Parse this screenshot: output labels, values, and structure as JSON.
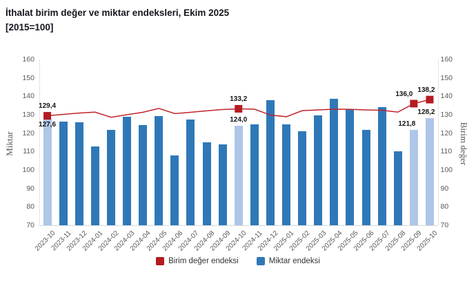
{
  "title": {
    "line1": "İthalat birim değer ve miktar endeksleri, Ekim 2025",
    "line2": "[2015=100]"
  },
  "chart_data": {
    "type": "bar+line",
    "categories": [
      "2023-10",
      "2023-11",
      "2023-12",
      "2024-01",
      "2024-02",
      "2024-03",
      "2024-04",
      "2024-05",
      "2024-06",
      "2024-07",
      "2024-08",
      "2024-09",
      "2024-10",
      "2024-11",
      "2024-12",
      "2025-01",
      "2025-02",
      "2025-03",
      "2025-04",
      "2025-05",
      "2025-06",
      "2025-07",
      "2025-08",
      "2025-09",
      "2025-10"
    ],
    "series": [
      {
        "name": "Birim değer endeksi",
        "type": "line",
        "values": [
          129.4,
          130.2,
          130.9,
          131.4,
          128.6,
          130.0,
          131.3,
          133.4,
          130.6,
          131.3,
          132.1,
          132.8,
          133.2,
          133.0,
          129.8,
          128.9,
          132.2,
          132.6,
          133.0,
          132.9,
          132.6,
          132.4,
          131.4,
          136.0,
          138.2
        ],
        "marker_indices": [
          0,
          12,
          23,
          24
        ]
      },
      {
        "name": "Miktar endeksi",
        "type": "bar",
        "values": [
          127.6,
          126.3,
          126.0,
          112.8,
          121.7,
          128.8,
          124.5,
          129.2,
          108.0,
          127.3,
          115.0,
          114.0,
          124.0,
          124.8,
          137.9,
          124.6,
          121.0,
          129.8,
          138.5,
          133.0,
          121.6,
          134.0,
          110.0,
          121.8,
          128.2
        ],
        "highlight_indices": [
          0,
          12,
          23,
          24
        ]
      }
    ],
    "ylim": [
      70,
      160
    ],
    "yticks": [
      160,
      150,
      140,
      130,
      120,
      110,
      100,
      90,
      80,
      70
    ],
    "ylabel_left": "Miktar",
    "ylabel_right": "Birim değer",
    "grid": "off",
    "legend_position": "bottom-center",
    "annotations": [
      {
        "series": "line",
        "index": 0,
        "text": "129,4",
        "pos": "above-marker",
        "dx": 0
      },
      {
        "series": "bar",
        "index": 0,
        "text": "127,6",
        "pos": "below-marker",
        "dx": 0
      },
      {
        "series": "line",
        "index": 12,
        "text": "133,2",
        "pos": "above-marker",
        "dx": 0
      },
      {
        "series": "bar",
        "index": 12,
        "text": "124,0",
        "pos": "above-bar",
        "dx": 0
      },
      {
        "series": "line",
        "index": 23,
        "text": "136,0",
        "pos": "above-marker",
        "dx": -14
      },
      {
        "series": "bar",
        "index": 23,
        "text": "121,8",
        "pos": "above-bar",
        "dx": -10
      },
      {
        "series": "line",
        "index": 24,
        "text": "138,2",
        "pos": "above-marker",
        "dx": -5
      },
      {
        "series": "bar",
        "index": 24,
        "text": "128,2",
        "pos": "above-bar",
        "dx": -5
      }
    ],
    "legend": [
      {
        "label": "Birim değer endeksi",
        "color": "#b41c22"
      },
      {
        "label": "Miktar endeksi",
        "color": "#2f78b8"
      }
    ],
    "colors": {
      "bar": "#2f78b8",
      "bar_highlight": "#aec6e8",
      "line": "#c0242c",
      "marker": "#b41c22",
      "axis_border": "#e4e4e6",
      "axis_bottom": "#d6d6d6",
      "tick_text": "#595959"
    }
  }
}
